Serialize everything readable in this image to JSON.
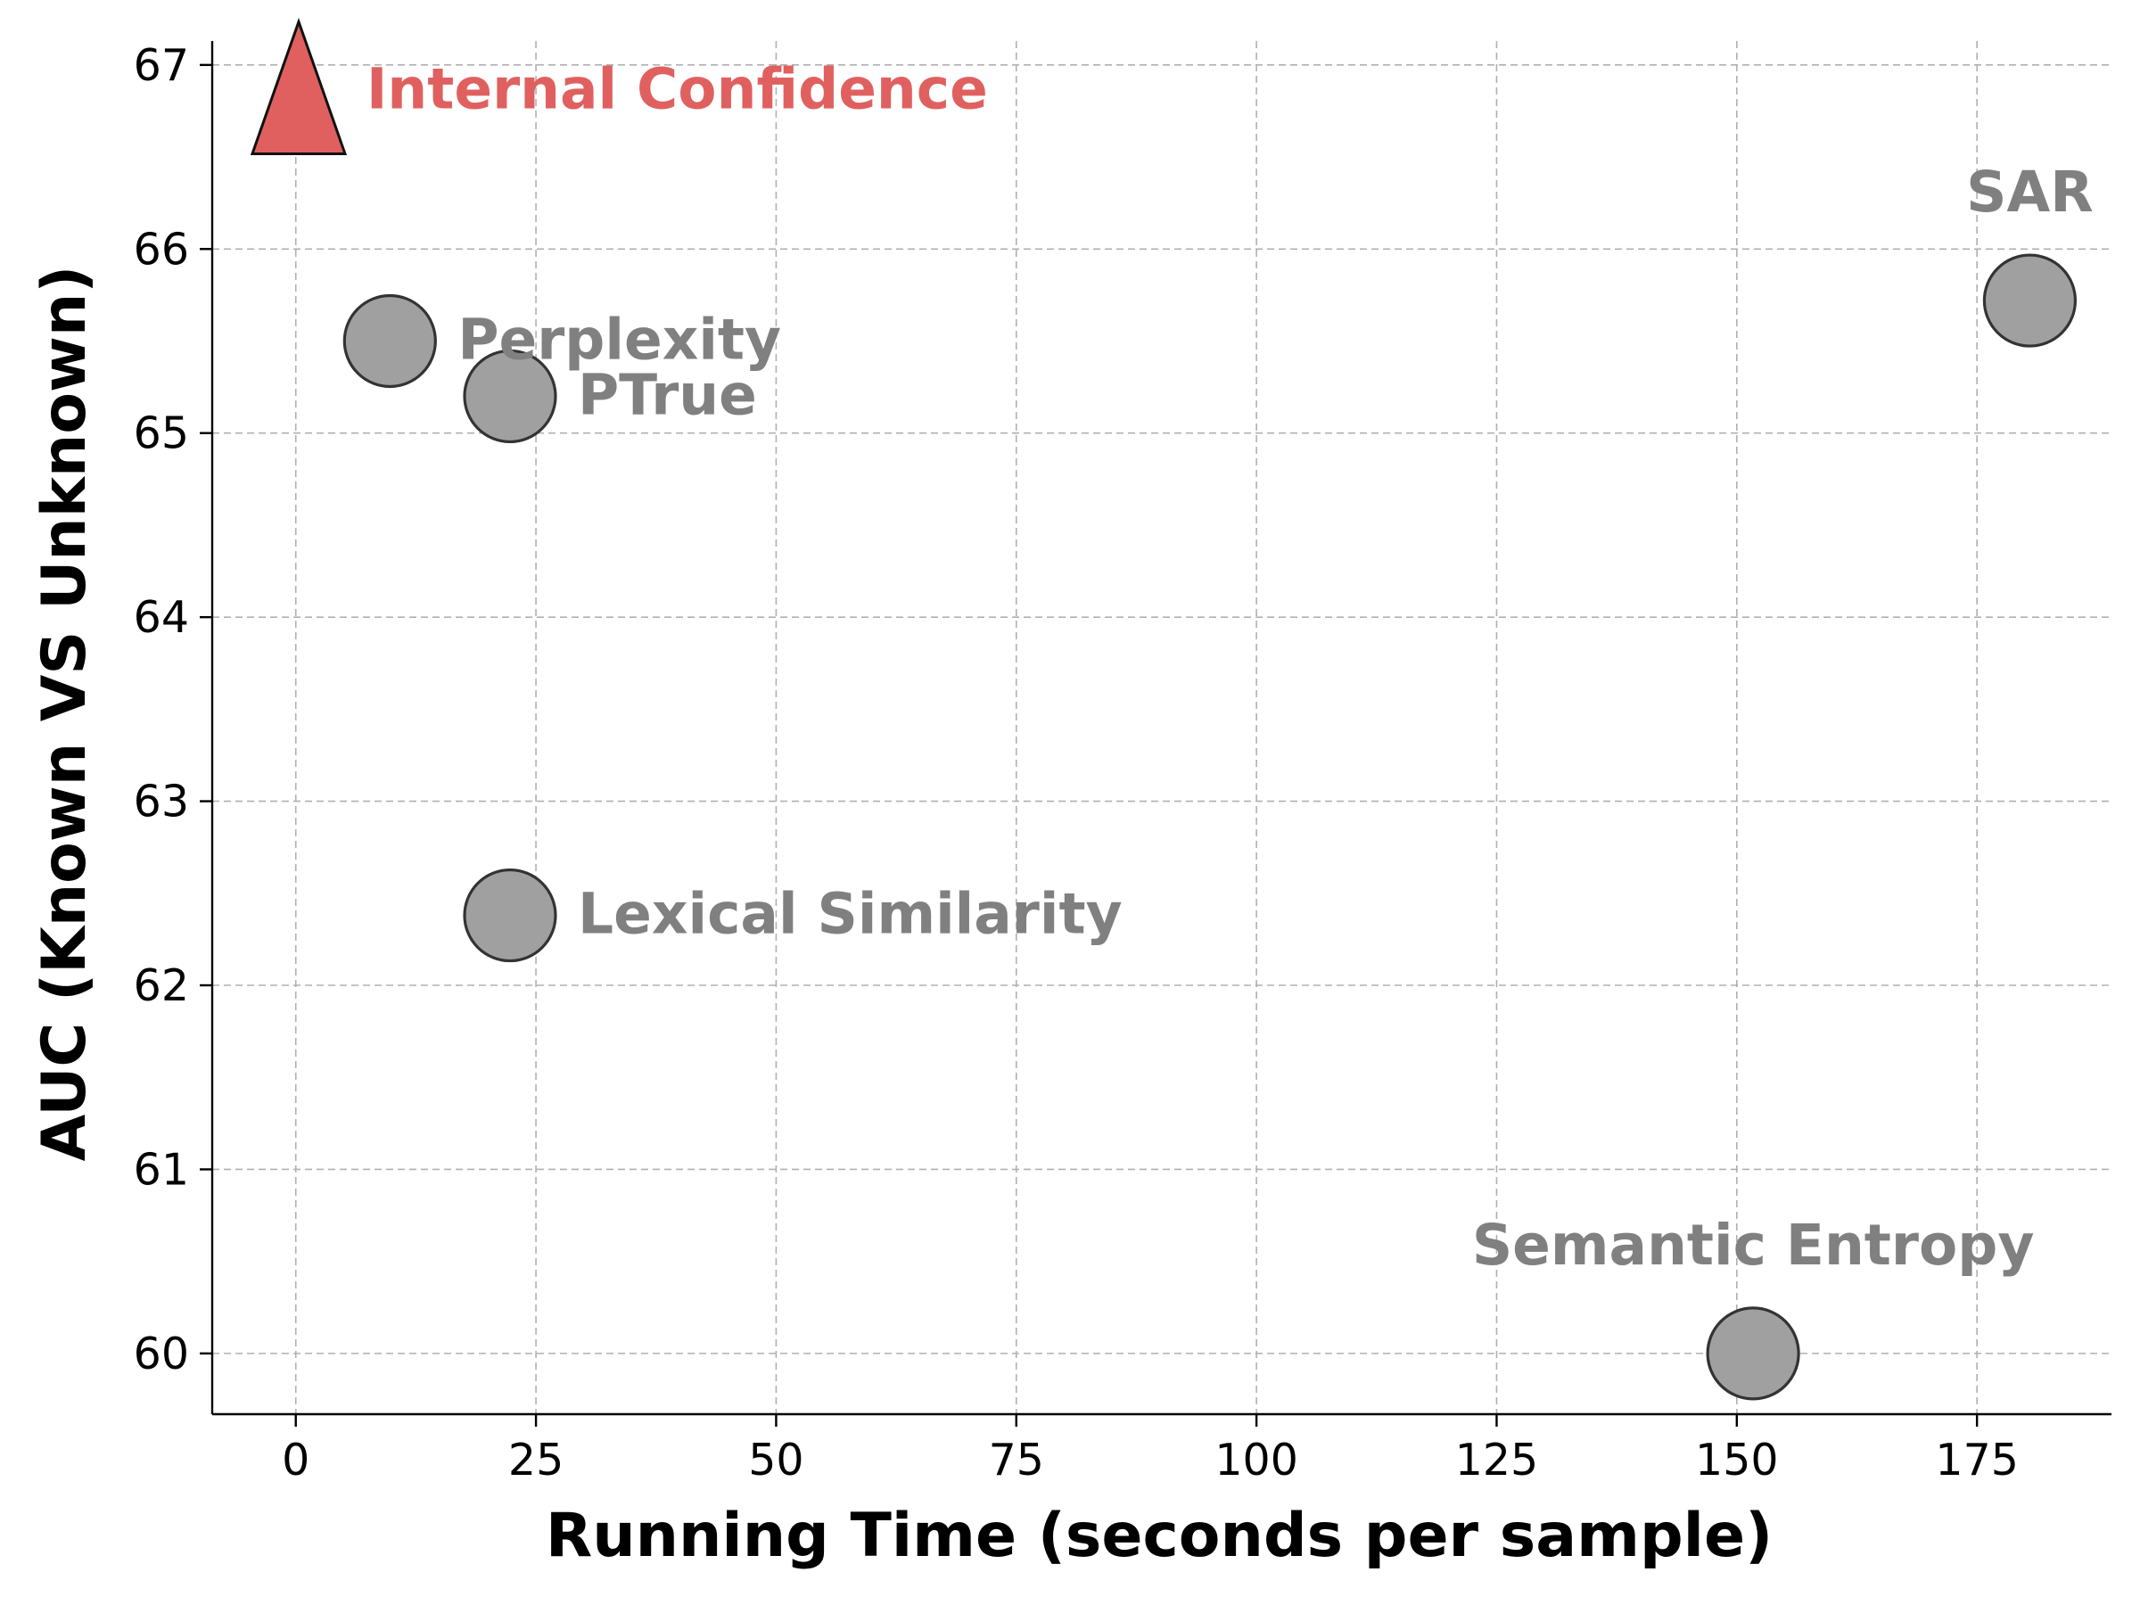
{
  "chart_data": {
    "type": "scatter",
    "title": "",
    "xlabel": "Running Time (seconds per sample)",
    "ylabel": "AUC (Known VS Unknown)",
    "xlim": [
      -8.7,
      189
    ],
    "ylim": [
      59.67,
      67.13
    ],
    "xticks": [
      0,
      25,
      50,
      75,
      100,
      125,
      150,
      175
    ],
    "yticks": [
      60,
      61,
      62,
      63,
      64,
      65,
      66,
      67
    ],
    "grid": true,
    "legend": "none",
    "points": [
      {
        "label": "Internal Confidence",
        "x": 0.3,
        "y": 66.75,
        "marker": "triangle",
        "color": "#e06060",
        "label_position": "right"
      },
      {
        "label": "Perplexity",
        "x": 9.8,
        "y": 65.5,
        "marker": "circle",
        "color": "#a0a0a0",
        "label_position": "right"
      },
      {
        "label": "PTrue",
        "x": 22.3,
        "y": 65.2,
        "marker": "circle",
        "color": "#a0a0a0",
        "label_position": "right"
      },
      {
        "label": "Lexical Similarity",
        "x": 22.3,
        "y": 62.38,
        "marker": "circle",
        "color": "#a0a0a0",
        "label_position": "right"
      },
      {
        "label": "SAR",
        "x": 180.5,
        "y": 65.72,
        "marker": "circle",
        "color": "#a0a0a0",
        "label_position": "above"
      },
      {
        "label": "Semantic Entropy",
        "x": 151.7,
        "y": 60.0,
        "marker": "circle",
        "color": "#a0a0a0",
        "label_position": "above"
      }
    ],
    "label_colors": {
      "highlight": "#e06060",
      "default": "#808080"
    }
  }
}
